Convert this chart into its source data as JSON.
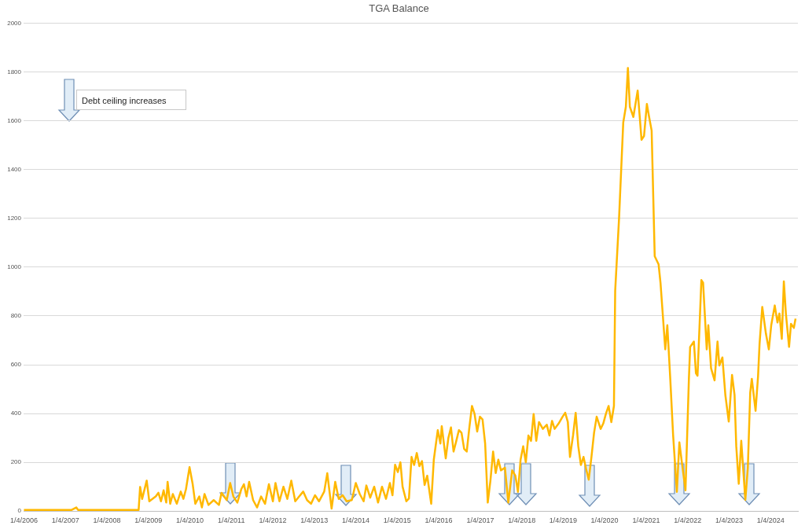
{
  "chart_data": {
    "type": "line",
    "title": "TGA Balance",
    "annotations": [
      "Debt ceiling increases"
    ],
    "xlim": [
      "2006-01-01",
      "2024-09-01"
    ],
    "xticks": [
      {
        "value": "2006-01-04",
        "label": "1/4/2006"
      },
      {
        "value": "2007-01-04",
        "label": "1/4/2007"
      },
      {
        "value": "2008-01-04",
        "label": "1/4/2008"
      },
      {
        "value": "2009-01-04",
        "label": "1/4/2009"
      },
      {
        "value": "2010-01-04",
        "label": "1/4/2010"
      },
      {
        "value": "2011-01-04",
        "label": "1/4/2011"
      },
      {
        "value": "2012-01-04",
        "label": "1/4/2012"
      },
      {
        "value": "2013-01-04",
        "label": "1/4/2013"
      },
      {
        "value": "2014-01-04",
        "label": "1/4/2014"
      },
      {
        "value": "2015-01-04",
        "label": "1/4/2015"
      },
      {
        "value": "2016-01-04",
        "label": "1/4/2016"
      },
      {
        "value": "2017-01-04",
        "label": "1/4/2017"
      },
      {
        "value": "2018-01-04",
        "label": "1/4/2018"
      },
      {
        "value": "2019-01-04",
        "label": "1/4/2019"
      },
      {
        "value": "2020-01-04",
        "label": "1/4/2020"
      },
      {
        "value": "2021-01-04",
        "label": "1/4/2021"
      },
      {
        "value": "2022-01-04",
        "label": "1/4/2022"
      },
      {
        "value": "2023-01-04",
        "label": "1/4/2023"
      },
      {
        "value": "2024-01-04",
        "label": "1/4/2024"
      }
    ],
    "ylim": [
      0,
      2000
    ],
    "yticks": [
      0,
      200,
      400,
      600,
      800,
      1000,
      1200,
      1400,
      1600,
      1800,
      2000
    ],
    "grid": "y",
    "legend": false,
    "marker": "none",
    "line_style": "solid",
    "series": [
      {
        "color": "#ffb800",
        "x": [
          "2006-01-04",
          "2007-03-01",
          "2007-04-10",
          "2007-04-25",
          "2008-10-10",
          "2008-10-23",
          "2008-11-10",
          "2008-12-20",
          "2009-01-12",
          "2009-03-10",
          "2009-04-02",
          "2009-04-25",
          "2009-05-18",
          "2009-06-10",
          "2009-06-22",
          "2009-07-15",
          "2009-08-07",
          "2009-09-11",
          "2009-10-16",
          "2009-11-08",
          "2009-12-01",
          "2010-01-01",
          "2010-01-29",
          "2010-02-21",
          "2010-03-28",
          "2010-04-20",
          "2010-05-13",
          "2010-06-17",
          "2010-08-02",
          "2010-09-17",
          "2010-10-10",
          "2010-11-25",
          "2010-12-25",
          "2011-01-22",
          "2011-02-26",
          "2011-04-02",
          "2011-04-25",
          "2011-05-18",
          "2011-06-10",
          "2011-07-15",
          "2011-08-19",
          "2011-09-23",
          "2011-10-28",
          "2011-12-01",
          "2012-01-05",
          "2012-01-28",
          "2012-03-03",
          "2012-04-07",
          "2012-05-11",
          "2012-06-15",
          "2012-07-20",
          "2012-08-24",
          "2012-09-28",
          "2012-11-01",
          "2012-12-06",
          "2013-01-10",
          "2013-02-14",
          "2013-04-01",
          "2013-04-28",
          "2013-06-05",
          "2013-07-07",
          "2013-08-07",
          "2013-09-10",
          "2013-10-15",
          "2013-11-30",
          "2014-01-04",
          "2014-02-08",
          "2014-03-14",
          "2014-04-07",
          "2014-05-11",
          "2014-06-15",
          "2014-07-19",
          "2014-08-23",
          "2014-09-27",
          "2014-10-31",
          "2014-11-23",
          "2014-12-16",
          "2015-01-09",
          "2015-02-01",
          "2015-02-20",
          "2015-03-25",
          "2015-04-17",
          "2015-05-10",
          "2015-06-02",
          "2015-06-25",
          "2015-07-18",
          "2015-08-10",
          "2015-09-02",
          "2015-09-25",
          "2015-10-30",
          "2015-11-22",
          "2015-12-27",
          "2016-01-19",
          "2016-01-31",
          "2016-03-06",
          "2016-03-29",
          "2016-04-21",
          "2016-05-14",
          "2016-06-07",
          "2016-06-30",
          "2016-07-23",
          "2016-08-15",
          "2016-09-07",
          "2016-09-30",
          "2016-10-23",
          "2016-11-15",
          "2016-12-08",
          "2017-01-01",
          "2017-01-24",
          "2017-02-16",
          "2017-03-11",
          "2017-04-03",
          "2017-04-27",
          "2017-05-20",
          "2017-06-12",
          "2017-07-05",
          "2017-08-09",
          "2017-09-08",
          "2017-10-12",
          "2017-11-09",
          "2017-12-02",
          "2017-12-25",
          "2018-01-17",
          "2018-02-09",
          "2018-03-04",
          "2018-03-27",
          "2018-04-19",
          "2018-05-12",
          "2018-06-05",
          "2018-07-09",
          "2018-08-13",
          "2018-09-05",
          "2018-09-28",
          "2018-10-21",
          "2018-11-25",
          "2018-12-30",
          "2019-01-22",
          "2019-02-14",
          "2019-03-05",
          "2019-04-01",
          "2019-04-24",
          "2019-05-17",
          "2019-06-09",
          "2019-07-02",
          "2019-07-25",
          "2019-08-17",
          "2019-09-10",
          "2019-10-03",
          "2019-10-26",
          "2019-11-30",
          "2019-12-23",
          "2020-01-15",
          "2020-02-08",
          "2020-03-03",
          "2020-03-26",
          "2020-04-06",
          "2020-05-10",
          "2020-06-16",
          "2020-07-09",
          "2020-07-27",
          "2020-08-13",
          "2020-09-13",
          "2020-10-21",
          "2020-11-24",
          "2020-12-16",
          "2021-01-10",
          "2021-01-28",
          "2021-02-21",
          "2021-03-20",
          "2021-04-23",
          "2021-05-10",
          "2021-06-21",
          "2021-07-09",
          "2021-08-04",
          "2021-08-29",
          "2021-10-01",
          "2021-10-23",
          "2021-11-17",
          "2021-12-16",
          "2022-01-15",
          "2022-01-26",
          "2022-02-28",
          "2022-03-18",
          "2022-04-01",
          "2022-05-05",
          "2022-05-20",
          "2022-06-21",
          "2022-07-05",
          "2022-07-29",
          "2022-08-29",
          "2022-09-24",
          "2022-10-10",
          "2022-11-06",
          "2022-12-02",
          "2023-01-01",
          "2023-01-30",
          "2023-02-21",
          "2023-03-08",
          "2023-03-30",
          "2023-04-21",
          "2023-05-27",
          "2023-06-18",
          "2023-07-09",
          "2023-07-23",
          "2023-08-25",
          "2023-09-16",
          "2023-09-29",
          "2023-10-23",
          "2023-11-24",
          "2023-12-20",
          "2024-01-10",
          "2024-02-10",
          "2024-03-05",
          "2024-03-22",
          "2024-04-12",
          "2024-04-30",
          "2024-05-18",
          "2024-06-15",
          "2024-07-02",
          "2024-07-27",
          "2024-08-11"
        ],
        "values": [
          5,
          5,
          15,
          5,
          5,
          99,
          50,
          125,
          40,
          60,
          75,
          40,
          85,
          35,
          120,
          30,
          70,
          30,
          80,
          50,
          90,
          180,
          110,
          30,
          60,
          15,
          70,
          25,
          45,
          25,
          75,
          45,
          115,
          60,
          35,
          90,
          110,
          60,
          120,
          45,
          15,
          60,
          30,
          110,
          40,
          115,
          40,
          100,
          50,
          125,
          40,
          60,
          80,
          45,
          30,
          65,
          40,
          80,
          155,
          10,
          120,
          50,
          65,
          40,
          45,
          115,
          70,
          40,
          105,
          55,
          100,
          35,
          100,
          50,
          115,
          65,
          190,
          160,
          200,
          100,
          40,
          52,
          222,
          189,
          238,
          184,
          205,
          107,
          145,
          30,
          211,
          332,
          277,
          348,
          216,
          299,
          343,
          244,
          288,
          332,
          321,
          255,
          244,
          343,
          431,
          398,
          326,
          387,
          376,
          277,
          35,
          123,
          244,
          156,
          211,
          167,
          178,
          35,
          167,
          145,
          79,
          211,
          266,
          200,
          310,
          288,
          398,
          288,
          365,
          337,
          354,
          310,
          370,
          337,
          359,
          387,
          403,
          365,
          222,
          310,
          403,
          266,
          189,
          222,
          173,
          129,
          222,
          321,
          387,
          337,
          359,
          398,
          431,
          365,
          431,
          903,
          1200,
          1593,
          1658,
          1817,
          1658,
          1616,
          1724,
          1522,
          1538,
          1669,
          1620,
          1560,
          1045,
          1012,
          936,
          663,
          762,
          542,
          312,
          79,
          282,
          189,
          85,
          542,
          673,
          695,
          565,
          555,
          947,
          936,
          663,
          762,
          586,
          536,
          695,
          597,
          630,
          476,
          367,
          558,
          476,
          266,
          112,
          288,
          46,
          178,
          486,
          542,
          411,
          553,
          684,
          837,
          728,
          663,
          762,
          843,
          773,
          810,
          706,
          942,
          810,
          673,
          768,
          751,
          789
        ]
      }
    ]
  }
}
